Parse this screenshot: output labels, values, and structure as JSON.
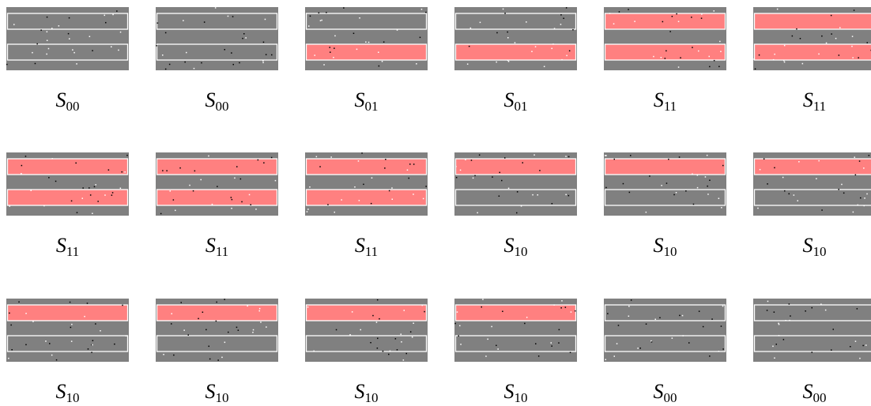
{
  "figure": {
    "active_color": "#ff8080",
    "idle_color": "#808080",
    "panels": [
      {
        "symbol": "S",
        "subscript": "00"
      },
      {
        "symbol": "S",
        "subscript": "00"
      },
      {
        "symbol": "S",
        "subscript": "01"
      },
      {
        "symbol": "S",
        "subscript": "01"
      },
      {
        "symbol": "S",
        "subscript": "11"
      },
      {
        "symbol": "S",
        "subscript": "11"
      },
      {
        "symbol": "S",
        "subscript": "11"
      },
      {
        "symbol": "S",
        "subscript": "11"
      },
      {
        "symbol": "S",
        "subscript": "11"
      },
      {
        "symbol": "S",
        "subscript": "10"
      },
      {
        "symbol": "S",
        "subscript": "10"
      },
      {
        "symbol": "S",
        "subscript": "10"
      },
      {
        "symbol": "S",
        "subscript": "10"
      },
      {
        "symbol": "S",
        "subscript": "10"
      },
      {
        "symbol": "S",
        "subscript": "10"
      },
      {
        "symbol": "S",
        "subscript": "10"
      },
      {
        "symbol": "S",
        "subscript": "00"
      },
      {
        "symbol": "S",
        "subscript": "00"
      }
    ]
  }
}
